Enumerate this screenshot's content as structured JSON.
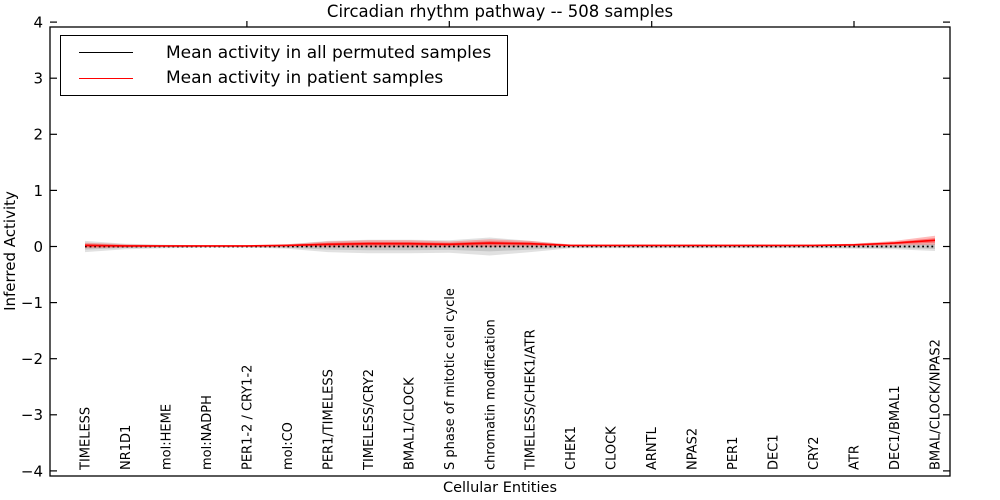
{
  "title": "Circadian rhythm pathway -- 508 samples",
  "axes": {
    "x_label": "Cellular Entities",
    "y_label": "Inferred Activity"
  },
  "legend": {
    "items": [
      {
        "label": "Mean activity in all permuted samples",
        "color": "#000000"
      },
      {
        "label": "Mean activity in patient samples",
        "color": "#ff0000"
      }
    ]
  },
  "colors": {
    "permuted_line": "#000000",
    "patient_line": "#ff0000",
    "permuted_band": "#aaaaaa",
    "patient_band": "#ff4444",
    "axis": "#000000",
    "background": "#ffffff"
  },
  "chart_data": {
    "type": "line",
    "title": "Circadian rhythm pathway -- 508 samples",
    "xlabel": "Cellular Entities",
    "ylabel": "Inferred Activity",
    "ylim": [
      -4,
      4
    ],
    "yticks": [
      4,
      3,
      2,
      1,
      0,
      -1,
      -2,
      -3,
      -4
    ],
    "grid": false,
    "legend_position": "upper left",
    "categories": [
      "TIMELESS",
      "NR1D1",
      "mol:HEME",
      "mol:NADPH",
      "PER1-2 / CRY1-2",
      "mol:CO",
      "PER1/TIMELESS",
      "TIMELESS/CRY2",
      "BMAL1/CLOCK",
      "S phase of mitotic cell cycle",
      "chromatin modification",
      "TIMELESS/CHEK1/ATR",
      "CHEK1",
      "CLOCK",
      "ARNTL",
      "NPAS2",
      "PER1",
      "DEC1",
      "CRY2",
      "ATR",
      "DEC1/BMAL1",
      "BMAL/CLOCK/NPAS2"
    ],
    "series": [
      {
        "name": "Mean activity in all permuted samples",
        "color": "#000000",
        "style": "dotted",
        "values": [
          0,
          0,
          0,
          0,
          0,
          0,
          0,
          0,
          0,
          0,
          0,
          0,
          0,
          0,
          0,
          0,
          0,
          0,
          0,
          0,
          0,
          0
        ],
        "band": [
          0.1,
          0.05,
          0.03,
          0.02,
          0.02,
          0.04,
          0.1,
          0.12,
          0.12,
          0.11,
          0.16,
          0.1,
          0.03,
          0.03,
          0.03,
          0.03,
          0.03,
          0.03,
          0.03,
          0.04,
          0.05,
          0.08
        ]
      },
      {
        "name": "Mean activity in patient samples",
        "color": "#ff0000",
        "style": "solid",
        "values": [
          0.02,
          0.01,
          0.01,
          0.01,
          0.01,
          0.02,
          0.04,
          0.05,
          0.05,
          0.04,
          0.06,
          0.05,
          0.02,
          0.02,
          0.02,
          0.02,
          0.02,
          0.02,
          0.02,
          0.03,
          0.06,
          0.11
        ],
        "band": [
          0.05,
          0.03,
          0.015,
          0.015,
          0.015,
          0.02,
          0.05,
          0.06,
          0.06,
          0.05,
          0.07,
          0.05,
          0.015,
          0.015,
          0.015,
          0.015,
          0.015,
          0.015,
          0.015,
          0.02,
          0.04,
          0.08
        ]
      }
    ]
  }
}
